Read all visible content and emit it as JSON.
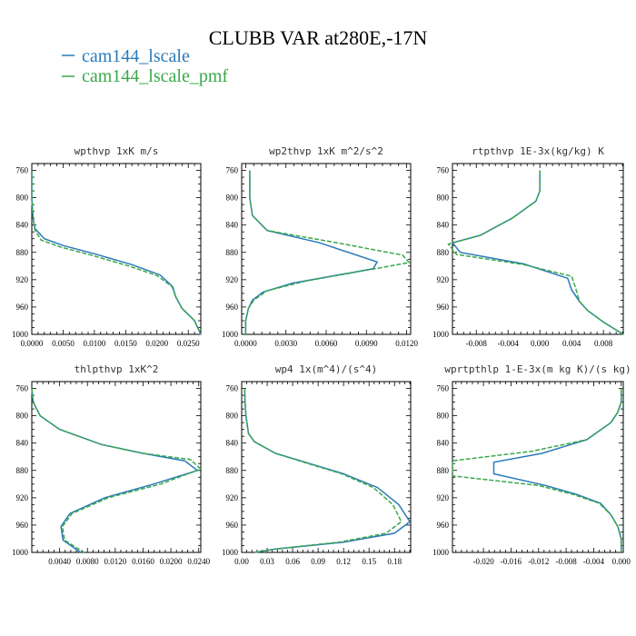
{
  "figure": {
    "title": "CLUBB VAR at280E,-17N",
    "legend": [
      {
        "label": "cam144_lscale",
        "color": "#2a7ab9"
      },
      {
        "label": "cam144_lscale_pmf",
        "color": "#3aa84a"
      }
    ]
  },
  "chart_data": [
    {
      "type": "line",
      "title": "wpthvp   1xK m/s",
      "xlim": [
        0,
        0.027
      ],
      "ylim": [
        1000,
        750
      ],
      "x_ticks": [
        "0.0000",
        "0.0050",
        "0.0100",
        "0.0150",
        "0.0200",
        "0.0250"
      ],
      "x_tick_values": [
        0,
        0.005,
        0.01,
        0.015,
        0.02,
        0.025
      ],
      "y_ticks": [
        "760",
        "800",
        "840",
        "880",
        "920",
        "960",
        "1000"
      ],
      "y_tick_values": [
        760,
        800,
        840,
        880,
        920,
        960,
        1000
      ],
      "series": [
        {
          "name": "cam144_lscale",
          "style": "solid",
          "points": [
            [
              0,
              760
            ],
            [
              0,
              800
            ],
            [
              0.0002,
              830
            ],
            [
              0.0005,
              845
            ],
            [
              0.002,
              860
            ],
            [
              0.005,
              870
            ],
            [
              0.01,
              882
            ],
            [
              0.016,
              898
            ],
            [
              0.0205,
              913
            ],
            [
              0.0225,
              930
            ],
            [
              0.023,
              945
            ],
            [
              0.024,
              962
            ],
            [
              0.026,
              980
            ],
            [
              0.027,
              1000
            ]
          ]
        },
        {
          "name": "cam144_lscale_pmf",
          "style": "dashed",
          "points": [
            [
              0,
              760
            ],
            [
              0,
              800
            ],
            [
              0.0002,
              830
            ],
            [
              0.0005,
              847
            ],
            [
              0.0015,
              862
            ],
            [
              0.0045,
              872
            ],
            [
              0.0095,
              884
            ],
            [
              0.0155,
              900
            ],
            [
              0.02,
              914
            ],
            [
              0.0224,
              930
            ],
            [
              0.023,
              945
            ],
            [
              0.024,
              962
            ],
            [
              0.026,
              980
            ],
            [
              0.027,
              1000
            ]
          ]
        }
      ]
    },
    {
      "type": "line",
      "title": "wp2thvp   1xK m^2/s^2",
      "xlim": [
        -0.0003,
        0.0123
      ],
      "ylim": [
        1000,
        750
      ],
      "x_ticks": [
        "0.0000",
        "0.0030",
        "0.0060",
        "0.0090",
        "0.0120"
      ],
      "x_tick_values": [
        0,
        0.003,
        0.006,
        0.009,
        0.012
      ],
      "y_ticks": [
        "760",
        "800",
        "840",
        "880",
        "920",
        "960",
        "1000"
      ],
      "y_tick_values": [
        760,
        800,
        840,
        880,
        920,
        960,
        1000
      ],
      "series": [
        {
          "name": "cam144_lscale",
          "style": "solid",
          "points": [
            [
              0.0003,
              760
            ],
            [
              0.0003,
              800
            ],
            [
              0.0005,
              826
            ],
            [
              0.0016,
              848
            ],
            [
              0.0055,
              866
            ],
            [
              0.0098,
              894
            ],
            [
              0.0095,
              904
            ],
            [
              0.0035,
              925
            ],
            [
              0.0013,
              938
            ],
            [
              0.0005,
              950
            ],
            [
              0.0002,
              962
            ],
            [
              0,
              980
            ],
            [
              0,
              1000
            ]
          ]
        },
        {
          "name": "cam144_lscale_pmf",
          "style": "dashed",
          "points": [
            [
              0.0003,
              760
            ],
            [
              0.0003,
              800
            ],
            [
              0.0005,
              826
            ],
            [
              0.0016,
              848
            ],
            [
              0.0068,
              866
            ],
            [
              0.0117,
              884
            ],
            [
              0.0122,
              895
            ],
            [
              0.0045,
              922
            ],
            [
              0.0016,
              936
            ],
            [
              0.0006,
              950
            ],
            [
              0.0002,
              962
            ],
            [
              0,
              980
            ],
            [
              0,
              1000
            ]
          ]
        }
      ]
    },
    {
      "type": "line",
      "title": "rtpthvp   1E-3x(kg/kg) K",
      "xlim": [
        -0.011,
        0.0105
      ],
      "ylim": [
        1000,
        750
      ],
      "x_ticks": [
        "-0.008",
        "-0.004",
        "0.000",
        "0.004",
        "0.008"
      ],
      "x_tick_values": [
        -0.008,
        -0.004,
        0,
        0.004,
        0.008
      ],
      "y_ticks": [
        "760",
        "800",
        "840",
        "880",
        "920",
        "960",
        "1000"
      ],
      "y_tick_values": [
        760,
        800,
        840,
        880,
        920,
        960,
        1000
      ],
      "series": [
        {
          "name": "cam144_lscale",
          "style": "solid",
          "points": [
            [
              0,
              760
            ],
            [
              0,
              790
            ],
            [
              -0.0005,
              805
            ],
            [
              -0.0035,
              830
            ],
            [
              -0.0075,
              855
            ],
            [
              -0.011,
              866
            ],
            [
              -0.01,
              880
            ],
            [
              -0.002,
              897
            ],
            [
              0.0035,
              918
            ],
            [
              0.004,
              935
            ],
            [
              0.005,
              952
            ],
            [
              0.006,
              965
            ],
            [
              0.008,
              982
            ],
            [
              0.0105,
              1000
            ]
          ]
        },
        {
          "name": "cam144_lscale_pmf",
          "style": "dashed",
          "points": [
            [
              0,
              760
            ],
            [
              0,
              790
            ],
            [
              -0.0005,
              805
            ],
            [
              -0.0035,
              830
            ],
            [
              -0.0075,
              855
            ],
            [
              -0.0115,
              868
            ],
            [
              -0.0105,
              883
            ],
            [
              -0.002,
              898
            ],
            [
              0.004,
              915
            ],
            [
              0.0045,
              932
            ],
            [
              0.005,
              952
            ],
            [
              0.006,
              965
            ],
            [
              0.008,
              982
            ],
            [
              0.0105,
              1000
            ]
          ]
        }
      ]
    },
    {
      "type": "line",
      "title": "thlpthvp   1xK^2",
      "xlim": [
        0,
        0.0243
      ],
      "ylim": [
        1000,
        750
      ],
      "x_ticks": [
        "0.0040",
        "0.0080",
        "0.0120",
        "0.0160",
        "0.0200",
        "0.0240"
      ],
      "x_tick_values": [
        0.004,
        0.008,
        0.012,
        0.016,
        0.02,
        0.024
      ],
      "y_ticks": [
        "760",
        "800",
        "840",
        "880",
        "920",
        "960",
        "1000"
      ],
      "y_tick_values": [
        760,
        800,
        840,
        880,
        920,
        960,
        1000
      ],
      "series": [
        {
          "name": "cam144_lscale",
          "style": "solid",
          "points": [
            [
              0,
              760
            ],
            [
              0.0002,
              780
            ],
            [
              0.0012,
              800
            ],
            [
              0.004,
              820
            ],
            [
              0.01,
              842
            ],
            [
              0.016,
              855
            ],
            [
              0.022,
              866
            ],
            [
              0.0238,
              880
            ],
            [
              0.0175,
              900
            ],
            [
              0.0105,
              920
            ],
            [
              0.0055,
              943
            ],
            [
              0.0042,
              962
            ],
            [
              0.0045,
              982
            ],
            [
              0.007,
              1000
            ]
          ]
        },
        {
          "name": "cam144_lscale_pmf",
          "style": "dashed",
          "points": [
            [
              0,
              760
            ],
            [
              0.0002,
              780
            ],
            [
              0.0012,
              800
            ],
            [
              0.004,
              820
            ],
            [
              0.01,
              842
            ],
            [
              0.016,
              855
            ],
            [
              0.0228,
              864
            ],
            [
              0.0243,
              878
            ],
            [
              0.0185,
              900
            ],
            [
              0.011,
              920
            ],
            [
              0.0058,
              943
            ],
            [
              0.0044,
              962
            ],
            [
              0.0047,
              982
            ],
            [
              0.0075,
              1000
            ]
          ]
        }
      ]
    },
    {
      "type": "line",
      "title": "wp4   1x(m^4)/(s^4)",
      "xlim": [
        0,
        0.199
      ],
      "ylim": [
        1000,
        750
      ],
      "x_ticks": [
        "0.00",
        "0.03",
        "0.06",
        "0.09",
        "0.12",
        "0.15",
        "0.18"
      ],
      "x_tick_values": [
        0,
        0.03,
        0.06,
        0.09,
        0.12,
        0.15,
        0.18
      ],
      "y_ticks": [
        "760",
        "800",
        "840",
        "880",
        "920",
        "960",
        "1000"
      ],
      "y_tick_values": [
        760,
        800,
        840,
        880,
        920,
        960,
        1000
      ],
      "series": [
        {
          "name": "cam144_lscale",
          "style": "solid",
          "points": [
            [
              0.0035,
              760
            ],
            [
              0.004,
              780
            ],
            [
              0.005,
              800
            ],
            [
              0.008,
              826
            ],
            [
              0.015,
              838
            ],
            [
              0.04,
              855
            ],
            [
              0.08,
              870
            ],
            [
              0.12,
              885
            ],
            [
              0.16,
              905
            ],
            [
              0.185,
              930
            ],
            [
              0.198,
              955
            ],
            [
              0.18,
              972
            ],
            [
              0.12,
              985
            ],
            [
              0.04,
              995
            ],
            [
              0.015,
              1000
            ]
          ]
        },
        {
          "name": "cam144_lscale_pmf",
          "style": "dashed",
          "points": [
            [
              0.0035,
              760
            ],
            [
              0.004,
              780
            ],
            [
              0.005,
              800
            ],
            [
              0.008,
              826
            ],
            [
              0.015,
              838
            ],
            [
              0.04,
              855
            ],
            [
              0.078,
              870
            ],
            [
              0.118,
              885
            ],
            [
              0.155,
              905
            ],
            [
              0.178,
              930
            ],
            [
              0.188,
              955
            ],
            [
              0.17,
              972
            ],
            [
              0.115,
              985
            ],
            [
              0.04,
              995
            ],
            [
              0.015,
              1000
            ]
          ]
        }
      ]
    },
    {
      "type": "line",
      "title": "wprtpthlp   1-E-3x(m kg K)/(s kg)",
      "xlim": [
        -0.0245,
        0.0003
      ],
      "ylim": [
        1000,
        750
      ],
      "x_ticks": [
        "-0.020",
        "-0.016",
        "-0.012",
        "-0.008",
        "-0.004",
        "0.000"
      ],
      "x_tick_values": [
        -0.02,
        -0.016,
        -0.012,
        -0.008,
        -0.004,
        0
      ],
      "y_ticks": [
        "760",
        "800",
        "840",
        "880",
        "920",
        "960",
        "1000"
      ],
      "y_tick_values": [
        760,
        800,
        840,
        880,
        920,
        960,
        1000
      ],
      "series": [
        {
          "name": "cam144_lscale",
          "style": "solid",
          "points": [
            [
              0,
              760
            ],
            [
              0,
              780
            ],
            [
              -0.0005,
              795
            ],
            [
              -0.0015,
              810
            ],
            [
              -0.005,
              835
            ],
            [
              -0.0115,
              855
            ],
            [
              -0.0185,
              868
            ],
            [
              -0.0185,
              885
            ],
            [
              -0.011,
              902
            ],
            [
              -0.0065,
              915
            ],
            [
              -0.003,
              928
            ],
            [
              -0.0015,
              945
            ],
            [
              -0.0005,
              962
            ],
            [
              0,
              980
            ],
            [
              0,
              1000
            ]
          ]
        },
        {
          "name": "cam144_lscale_pmf",
          "style": "dashed",
          "points": [
            [
              0,
              760
            ],
            [
              0,
              780
            ],
            [
              -0.0005,
              795
            ],
            [
              -0.0015,
              810
            ],
            [
              -0.005,
              835
            ],
            [
              -0.013,
              852
            ],
            [
              -0.0245,
              866
            ],
            [
              -0.0245,
              888
            ],
            [
              -0.012,
              902
            ],
            [
              -0.007,
              915
            ],
            [
              -0.0032,
              928
            ],
            [
              -0.0015,
              945
            ],
            [
              -0.0005,
              962
            ],
            [
              0,
              980
            ],
            [
              0,
              1000
            ]
          ]
        }
      ]
    }
  ]
}
